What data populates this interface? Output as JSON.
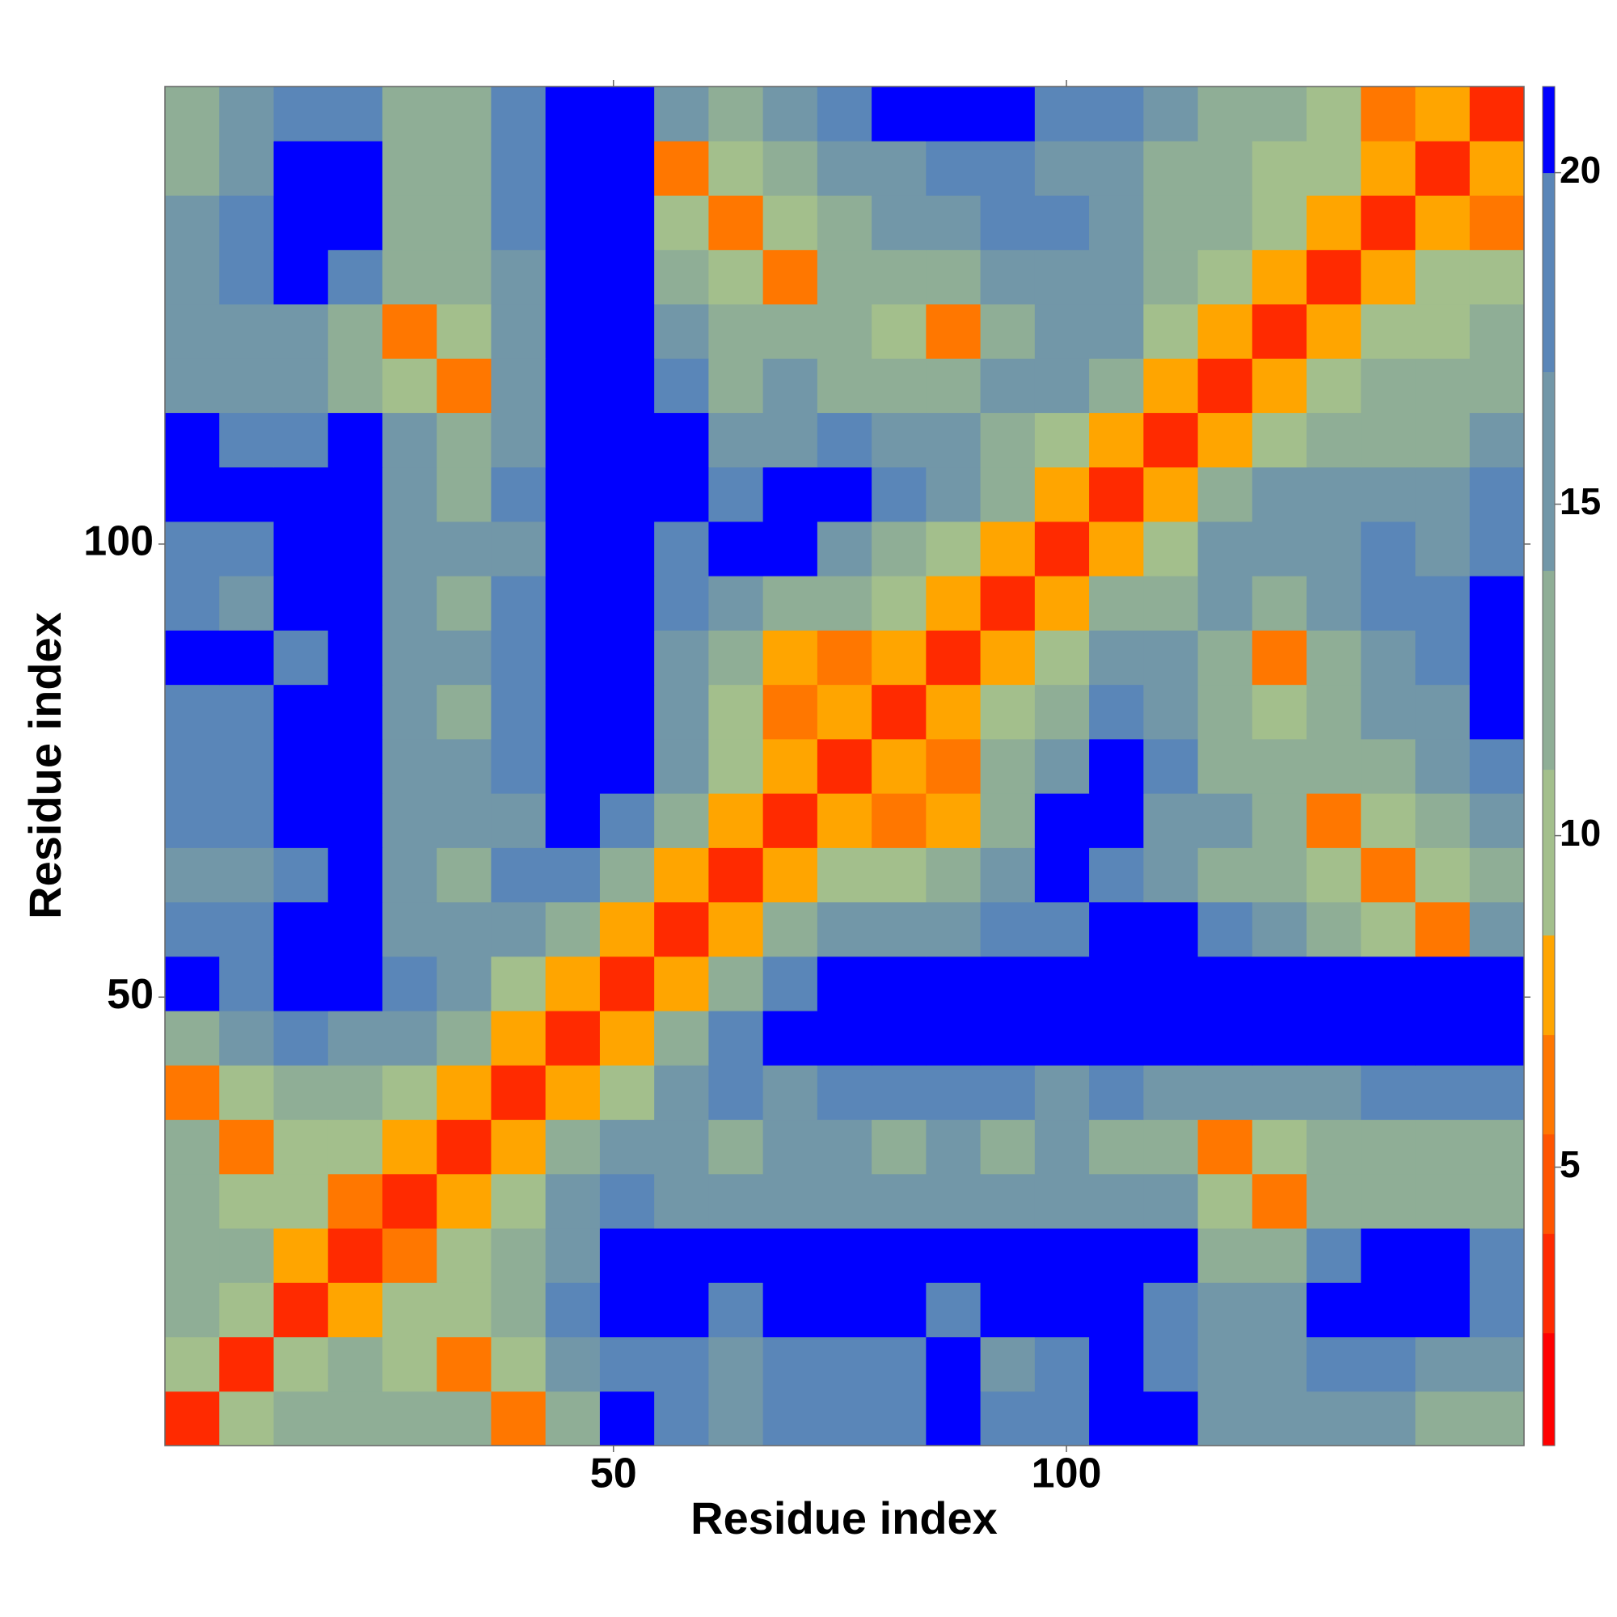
{
  "chart_data": {
    "type": "heatmap",
    "x_label": "Residue index",
    "y_label": "Residue index",
    "xlim": [
      0.5,
      150.5
    ],
    "ylim": [
      0.5,
      150.5
    ],
    "xticks": [
      50,
      100
    ],
    "yticks": [
      50,
      100
    ],
    "x": [
      3.5,
      9.5,
      15.5,
      21.5,
      27.5,
      33.5,
      39.5,
      45.5,
      51.5,
      57.5,
      63.5,
      69.5,
      75.5,
      81.5,
      87.5,
      93.5,
      99.5,
      105.5,
      111.5,
      117.5,
      123.5,
      129.5,
      135.5,
      141.5,
      147.5
    ],
    "y": [
      3.5,
      9.5,
      15.5,
      21.5,
      27.5,
      33.5,
      39.5,
      45.5,
      51.5,
      57.5,
      63.5,
      69.5,
      75.5,
      81.5,
      87.5,
      93.5,
      99.5,
      105.5,
      111.5,
      117.5,
      123.5,
      129.5,
      135.5,
      141.5,
      147.5
    ],
    "z": [
      [
        3,
        9,
        12,
        13,
        12,
        12,
        6,
        13,
        21,
        18,
        17,
        19,
        20,
        19,
        21,
        18,
        19,
        21,
        21,
        15,
        16,
        17,
        15,
        14,
        14
      ],
      [
        9,
        3,
        9,
        12,
        11,
        6,
        10,
        15,
        20,
        18,
        17,
        19,
        20,
        19,
        21,
        17,
        18,
        21,
        20,
        16,
        17,
        19,
        18,
        17,
        16
      ],
      [
        12,
        9,
        3,
        8,
        10,
        11,
        13,
        19,
        21,
        21,
        20,
        21,
        21,
        21,
        20,
        21,
        21,
        21,
        19,
        15,
        17,
        21,
        21,
        21,
        20
      ],
      [
        13,
        12,
        8,
        3,
        7,
        9,
        12,
        17,
        21,
        21,
        21,
        21,
        21,
        21,
        21,
        21,
        21,
        21,
        21,
        13,
        14,
        20,
        21,
        21,
        19
      ],
      [
        12,
        11,
        10,
        7,
        3,
        8,
        11,
        15,
        19,
        17,
        16,
        15,
        17,
        16,
        15,
        16,
        17,
        16,
        15,
        11,
        7,
        13,
        13,
        14,
        13
      ],
      [
        12,
        6,
        11,
        9,
        8,
        3,
        8,
        12,
        17,
        16,
        14,
        15,
        16,
        14,
        15,
        14,
        15,
        14,
        13,
        7,
        10,
        12,
        14,
        13,
        14
      ],
      [
        6,
        10,
        13,
        12,
        11,
        8,
        3,
        8,
        11,
        15,
        18,
        16,
        19,
        18,
        19,
        18,
        17,
        18,
        17,
        15,
        17,
        17,
        19,
        18,
        18
      ],
      [
        13,
        15,
        19,
        17,
        15,
        12,
        8,
        3,
        8,
        12,
        19,
        21,
        21,
        21,
        21,
        21,
        21,
        21,
        21,
        21,
        21,
        21,
        21,
        21,
        21
      ],
      [
        21,
        20,
        21,
        21,
        19,
        17,
        11,
        8,
        3,
        8,
        14,
        19,
        21,
        21,
        21,
        21,
        21,
        21,
        21,
        21,
        21,
        21,
        21,
        21,
        21
      ],
      [
        18,
        18,
        21,
        21,
        17,
        16,
        15,
        12,
        8,
        3,
        8,
        12,
        16,
        17,
        16,
        19,
        20,
        21,
        21,
        18,
        15,
        13,
        10,
        6,
        15
      ],
      [
        17,
        17,
        20,
        21,
        16,
        14,
        18,
        19,
        14,
        8,
        3,
        8,
        11,
        9,
        12,
        15,
        21,
        19,
        16,
        14,
        12,
        11,
        6,
        10,
        14
      ],
      [
        19,
        19,
        21,
        21,
        15,
        15,
        16,
        21,
        19,
        12,
        8,
        3,
        8,
        7,
        8,
        13,
        21,
        21,
        17,
        15,
        13,
        7,
        11,
        13,
        16
      ],
      [
        20,
        20,
        21,
        21,
        17,
        16,
        19,
        21,
        21,
        16,
        11,
        8,
        3,
        8,
        7,
        12,
        17,
        21,
        18,
        14,
        12,
        12,
        13,
        16,
        20
      ],
      [
        19,
        19,
        21,
        21,
        16,
        14,
        18,
        21,
        21,
        17,
        9,
        7,
        8,
        3,
        8,
        11,
        14,
        18,
        17,
        13,
        10,
        13,
        15,
        17,
        21
      ],
      [
        21,
        21,
        20,
        21,
        15,
        15,
        19,
        21,
        21,
        16,
        12,
        8,
        7,
        8,
        3,
        8,
        11,
        16,
        16,
        14,
        7,
        14,
        16,
        18,
        21
      ],
      [
        18,
        17,
        21,
        21,
        16,
        14,
        18,
        21,
        21,
        19,
        15,
        13,
        12,
        11,
        8,
        3,
        8,
        12,
        14,
        16,
        14,
        17,
        18,
        19,
        21
      ],
      [
        19,
        18,
        21,
        21,
        17,
        15,
        17,
        21,
        21,
        20,
        21,
        21,
        17,
        14,
        11,
        8,
        3,
        8,
        11,
        15,
        17,
        16,
        18,
        17,
        19
      ],
      [
        21,
        21,
        21,
        21,
        16,
        14,
        18,
        21,
        21,
        21,
        19,
        21,
        21,
        18,
        16,
        12,
        8,
        3,
        8,
        12,
        16,
        17,
        17,
        16,
        18
      ],
      [
        21,
        20,
        19,
        21,
        15,
        13,
        17,
        21,
        21,
        21,
        16,
        17,
        18,
        17,
        16,
        14,
        11,
        8,
        3,
        8,
        11,
        14,
        14,
        13,
        15
      ],
      [
        15,
        16,
        15,
        13,
        11,
        7,
        15,
        21,
        21,
        18,
        14,
        15,
        14,
        13,
        14,
        16,
        15,
        12,
        8,
        3,
        8,
        10,
        12,
        13,
        14
      ],
      [
        16,
        17,
        17,
        14,
        7,
        10,
        17,
        21,
        21,
        15,
        12,
        13,
        12,
        10,
        7,
        14,
        17,
        16,
        11,
        8,
        3,
        8,
        10,
        11,
        13
      ],
      [
        17,
        19,
        21,
        20,
        13,
        12,
        17,
        21,
        21,
        13,
        11,
        7,
        12,
        13,
        14,
        17,
        16,
        17,
        14,
        10,
        8,
        3,
        8,
        9,
        9
      ],
      [
        15,
        18,
        21,
        21,
        13,
        14,
        19,
        21,
        21,
        10,
        6,
        11,
        13,
        15,
        16,
        18,
        18,
        17,
        14,
        12,
        10,
        8,
        3,
        8,
        6
      ],
      [
        14,
        17,
        21,
        21,
        14,
        13,
        18,
        21,
        21,
        6,
        10,
        13,
        16,
        17,
        18,
        19,
        17,
        16,
        13,
        13,
        11,
        9,
        8,
        3,
        8
      ],
      [
        14,
        16,
        20,
        19,
        13,
        14,
        18,
        21,
        21,
        15,
        14,
        16,
        20,
        21,
        21,
        21,
        19,
        18,
        15,
        14,
        13,
        9,
        6,
        8,
        3
      ]
    ],
    "zlim": [
      0.8,
      21.3
    ],
    "colorbar_ticks": [
      5,
      10,
      15,
      20
    ],
    "colorscale": [
      {
        "max": 2.5,
        "color": "#ff0000"
      },
      {
        "max": 4,
        "color": "#ff2a00"
      },
      {
        "max": 5.5,
        "color": "#ff5500"
      },
      {
        "max": 7,
        "color": "#ff7700"
      },
      {
        "max": 8.5,
        "color": "#ffa500"
      },
      {
        "max": 11,
        "color": "#a3bf8c"
      },
      {
        "max": 14,
        "color": "#8fae96"
      },
      {
        "max": 17,
        "color": "#7297a8"
      },
      {
        "max": 20,
        "color": "#5a86b8"
      },
      {
        "max": 21.3,
        "color": "#0000ff"
      }
    ]
  }
}
